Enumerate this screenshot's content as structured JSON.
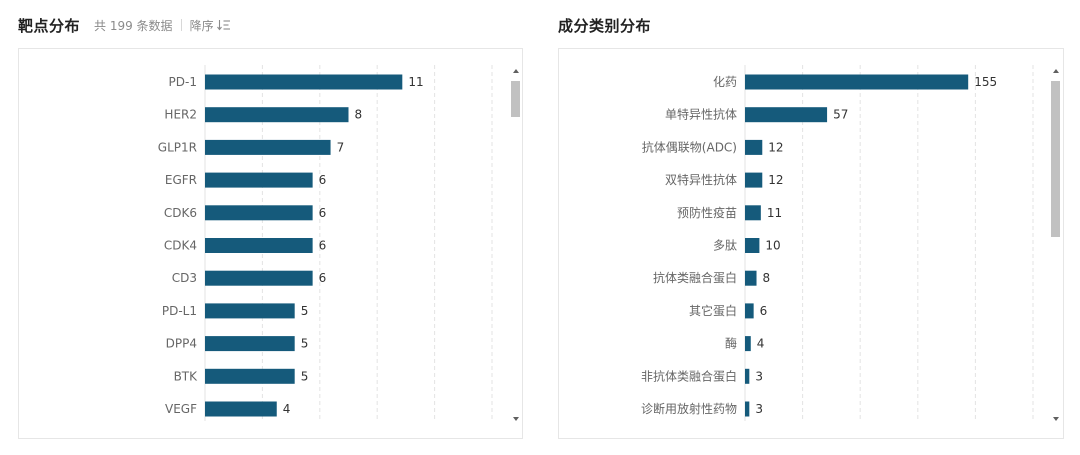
{
  "left_panel": {
    "title": "靶点分布",
    "count_text": "共 199 条数据",
    "sort_label": "降序",
    "sort_icon": "sort-descending-icon"
  },
  "right_panel": {
    "title": "成分类别分布"
  },
  "colors": {
    "bar": "#155a7b",
    "grid": "#e3e3e3",
    "scroll_thumb": "#c1c1c1"
  },
  "chart_data": [
    {
      "type": "bar",
      "orientation": "horizontal",
      "title": "",
      "categories": [
        "PD-1",
        "HER2",
        "GLP1R",
        "EGFR",
        "CDK6",
        "CDK4",
        "CD3",
        "PD-L1",
        "DPP4",
        "BTK",
        "VEGF"
      ],
      "values": [
        11,
        8,
        7,
        6,
        6,
        6,
        6,
        5,
        5,
        5,
        4
      ],
      "xlim": [
        0,
        16
      ],
      "grid": true,
      "scrollable": true
    },
    {
      "type": "bar",
      "orientation": "horizontal",
      "title": "",
      "categories": [
        "化药",
        "单特异性抗体",
        "抗体偶联物(ADC)",
        "双特异性抗体",
        "预防性疫苗",
        "多肽",
        "抗体类融合蛋白",
        "其它蛋白",
        "酶",
        "非抗体类融合蛋白",
        "诊断用放射性药物"
      ],
      "values": [
        155,
        57,
        12,
        12,
        11,
        10,
        8,
        6,
        4,
        3,
        3
      ],
      "xlim": [
        0,
        200
      ],
      "grid": true,
      "scrollable": true
    }
  ]
}
